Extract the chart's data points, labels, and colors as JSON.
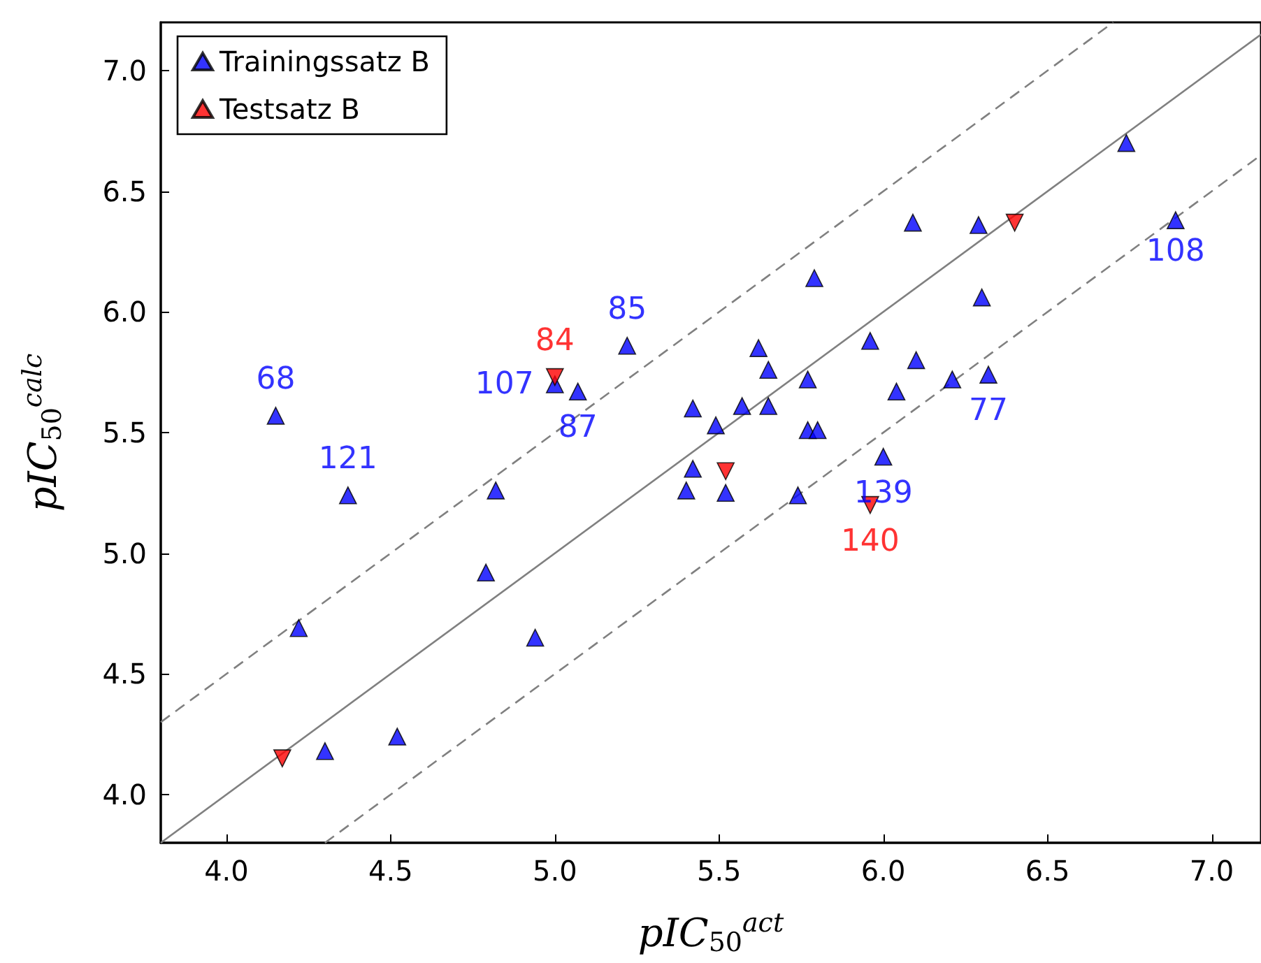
{
  "chart_data": {
    "type": "scatter",
    "xlabel": "pIC$_{50}$$^{act}$",
    "ylabel": "pIC$_{50}$$^{calc}$",
    "xlim": [
      3.8,
      7.15
    ],
    "ylim": [
      3.8,
      7.2
    ],
    "xticks": [
      {
        "value": 4,
        "label": "4.0"
      },
      4.5,
      {
        "value": 5,
        "label": "5.0"
      },
      5.5,
      {
        "value": 6,
        "label": "6.0"
      },
      6.5,
      {
        "value": 7,
        "label": "7.0"
      }
    ],
    "yticks": [
      {
        "value": 4,
        "label": "4.0"
      },
      4.5,
      {
        "value": 5,
        "label": "5.0"
      },
      5.5,
      {
        "value": 6,
        "label": "6.0"
      },
      6.5,
      {
        "value": 7,
        "label": "7.0"
      }
    ],
    "grid": false,
    "legend": "top left",
    "series": [
      {
        "name": "Trainingssatz B",
        "color": "#0000ff",
        "marker": "triangle",
        "x": [
          4.15,
          4.37,
          4.22,
          4.3,
          4.52,
          4.79,
          4.82,
          4.94,
          5.0,
          5.07,
          5.22,
          5.4,
          5.42,
          5.42,
          5.49,
          5.52,
          5.57,
          5.62,
          5.65,
          5.65,
          5.74,
          5.77,
          5.77,
          5.8,
          5.79,
          5.96,
          6.0,
          6.04,
          6.09,
          6.1,
          6.21,
          6.29,
          6.3,
          6.32,
          6.74,
          6.89
        ],
        "values": [
          5.57,
          5.24,
          4.69,
          4.18,
          4.24,
          4.92,
          5.26,
          4.65,
          5.7,
          5.67,
          5.86,
          5.26,
          5.35,
          5.6,
          5.53,
          5.25,
          5.61,
          5.85,
          5.76,
          5.61,
          5.24,
          5.72,
          5.51,
          5.51,
          6.14,
          5.88,
          5.4,
          5.67,
          6.37,
          5.8,
          5.72,
          6.36,
          6.06,
          5.74,
          6.7,
          6.38
        ]
      },
      {
        "name": "Testsatz B",
        "color": "#ff0000",
        "marker": "triangle-down",
        "x": [
          4.17,
          5.0,
          5.52,
          5.96,
          6.4
        ],
        "values": [
          4.15,
          5.73,
          5.34,
          5.2,
          6.37
        ]
      },
      {
        "type": "line",
        "color": "#808080",
        "line_style": "solid",
        "marker": "none",
        "x": [
          3.8,
          7.15
        ],
        "values": [
          3.8,
          7.15
        ]
      },
      {
        "type": "line",
        "color": "#808080",
        "line_style": "dashed",
        "marker": "none",
        "x": [
          3.8,
          6.7
        ],
        "values": [
          4.3,
          7.2
        ]
      },
      {
        "type": "line",
        "color": "#808080",
        "line_style": "dashed",
        "marker": "none",
        "x": [
          4.3,
          7.15
        ],
        "values": [
          3.8,
          6.65
        ]
      }
    ],
    "annotations": [
      {
        "text": "68",
        "x": 4.15,
        "y": 5.57
      },
      {
        "text": "121",
        "x": 4.37,
        "y": 5.24
      },
      {
        "text": "107",
        "x": 5.0,
        "y": 5.7
      },
      {
        "text": "84",
        "x": 5.0,
        "y": 5.73
      },
      {
        "text": "87",
        "x": 5.07,
        "y": 5.67
      },
      {
        "text": "85",
        "x": 5.22,
        "y": 5.86
      },
      {
        "text": "108",
        "x": 6.89,
        "y": 6.4
      },
      {
        "text": "77",
        "x": 6.32,
        "y": 5.74
      },
      {
        "text": "139",
        "x": 6.0,
        "y": 5.4
      },
      {
        "text": "140",
        "x": 5.96,
        "y": 5.2
      }
    ]
  }
}
